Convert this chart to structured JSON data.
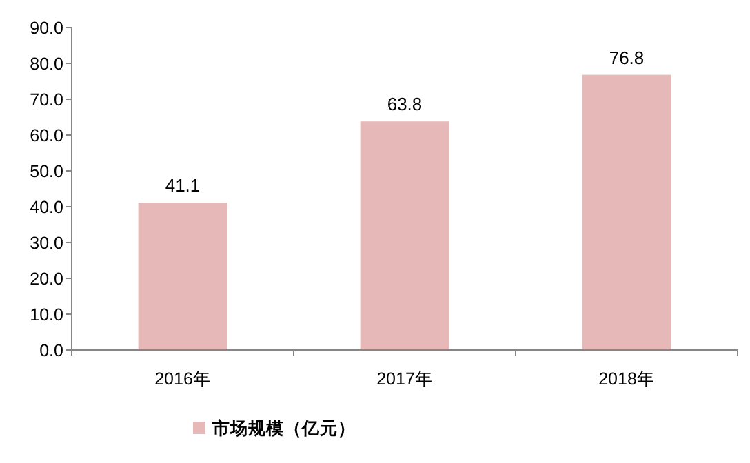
{
  "chart_data": {
    "type": "bar",
    "categories": [
      "2016年",
      "2017年",
      "2018年"
    ],
    "series": [
      {
        "name": "市场规模（亿元）",
        "color": "#e6b8b7",
        "values": [
          41.1,
          63.8,
          76.8
        ]
      }
    ],
    "ylim": [
      0,
      90
    ],
    "yticks": [
      {
        "value": 0,
        "label": "0.0"
      },
      {
        "value": 10,
        "label": "10.0"
      },
      {
        "value": 20,
        "label": "20.0"
      },
      {
        "value": 30,
        "label": "30.0"
      },
      {
        "value": 40,
        "label": "40.0"
      },
      {
        "value": 50,
        "label": "50.0"
      },
      {
        "value": 60,
        "label": "60.0"
      },
      {
        "value": 70,
        "label": "70.0"
      },
      {
        "value": 80,
        "label": "80.0"
      },
      {
        "value": 90,
        "label": "90.0"
      }
    ],
    "data_labels": true,
    "legend": "bottom"
  }
}
